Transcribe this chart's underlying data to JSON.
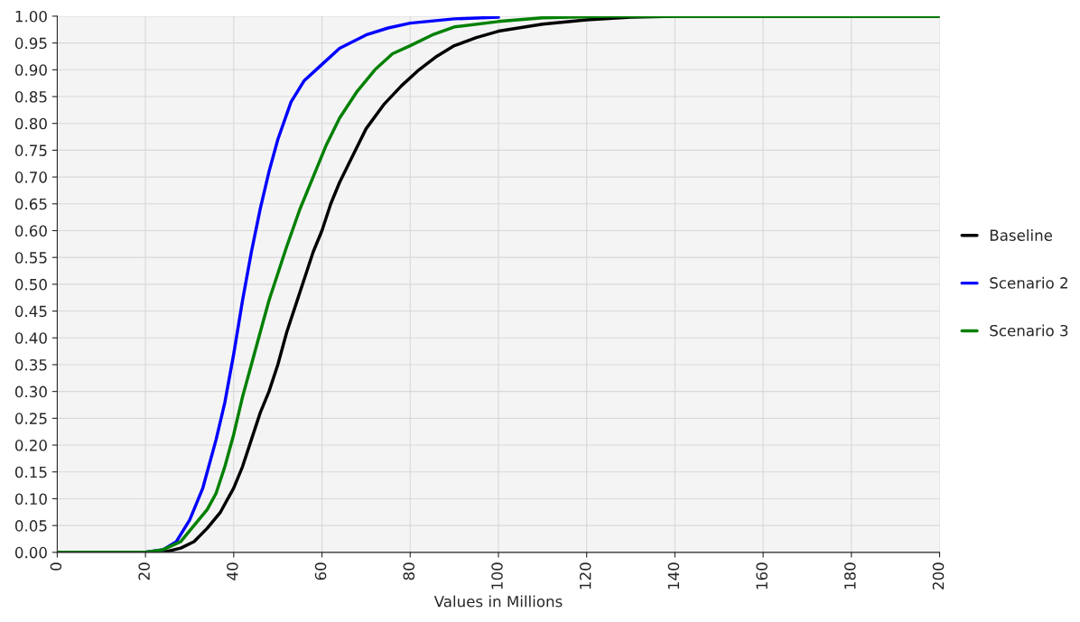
{
  "chart_data": {
    "type": "line",
    "xlabel": "Values in Millions",
    "xlim": [
      0,
      200
    ],
    "xticks": [
      0,
      20,
      40,
      60,
      80,
      100,
      120,
      140,
      160,
      180,
      200
    ],
    "ylim": [
      0,
      1
    ],
    "yticks": [
      {
        "value": 0,
        "label": "0.00"
      },
      {
        "value": 0.05,
        "label": "0.05"
      },
      {
        "value": 0.1,
        "label": "0.10"
      },
      {
        "value": 0.15,
        "label": "0.15"
      },
      {
        "value": 0.2,
        "label": "0.20"
      },
      {
        "value": 0.25,
        "label": "0.25"
      },
      {
        "value": 0.3,
        "label": "0.30"
      },
      {
        "value": 0.35,
        "label": "0.35"
      },
      {
        "value": 0.4,
        "label": "0.40"
      },
      {
        "value": 0.45,
        "label": "0.45"
      },
      {
        "value": 0.5,
        "label": "0.50"
      },
      {
        "value": 0.55,
        "label": "0.55"
      },
      {
        "value": 0.6,
        "label": "0.60"
      },
      {
        "value": 0.65,
        "label": "0.65"
      },
      {
        "value": 0.7,
        "label": "0.70"
      },
      {
        "value": 0.75,
        "label": "0.75"
      },
      {
        "value": 0.8,
        "label": "0.80"
      },
      {
        "value": 0.85,
        "label": "0.85"
      },
      {
        "value": 0.9,
        "label": "0.90"
      },
      {
        "value": 0.95,
        "label": "0.95"
      },
      {
        "value": 1,
        "label": "1.00"
      }
    ],
    "grid": true,
    "legend": "right",
    "line_style": "solid",
    "series": [
      {
        "name": "Baseline",
        "color": "#000000",
        "x": [
          0,
          20,
          25,
          28,
          31,
          34,
          37,
          40,
          42,
          44,
          46,
          48,
          50,
          52,
          54,
          56,
          58,
          60,
          62,
          64,
          67,
          70,
          74,
          78,
          82,
          86,
          90,
          95,
          100,
          110,
          120,
          130,
          140,
          200
        ],
        "values": [
          0,
          0,
          0.002,
          0.008,
          0.02,
          0.045,
          0.075,
          0.12,
          0.16,
          0.21,
          0.26,
          0.3,
          0.35,
          0.41,
          0.46,
          0.51,
          0.56,
          0.6,
          0.65,
          0.69,
          0.74,
          0.79,
          0.835,
          0.87,
          0.9,
          0.925,
          0.945,
          0.96,
          0.972,
          0.985,
          0.993,
          0.998,
          1,
          1
        ]
      },
      {
        "name": "Scenario 2",
        "color": "#0000ff",
        "x": [
          0,
          20,
          24,
          27,
          30,
          33,
          36,
          38,
          40,
          42,
          44,
          46,
          48,
          50,
          53,
          56,
          60,
          64,
          70,
          75,
          80,
          90,
          100
        ],
        "values": [
          0,
          0,
          0.005,
          0.02,
          0.06,
          0.12,
          0.21,
          0.28,
          0.37,
          0.47,
          0.56,
          0.64,
          0.71,
          0.77,
          0.84,
          0.88,
          0.91,
          0.94,
          0.965,
          0.978,
          0.987,
          0.995,
          0.998
        ]
      },
      {
        "name": "Scenario 3",
        "color": "#008000",
        "x": [
          0,
          20,
          24,
          28,
          31,
          34,
          36,
          38,
          40,
          42,
          44,
          46,
          48,
          50,
          52,
          55,
          58,
          61,
          64,
          68,
          72,
          76,
          80,
          85,
          90,
          100,
          110,
          125,
          200
        ],
        "values": [
          0,
          0,
          0.005,
          0.02,
          0.05,
          0.08,
          0.11,
          0.16,
          0.22,
          0.29,
          0.35,
          0.41,
          0.47,
          0.52,
          0.57,
          0.64,
          0.7,
          0.76,
          0.81,
          0.86,
          0.9,
          0.93,
          0.945,
          0.965,
          0.98,
          0.99,
          0.997,
          1,
          1
        ]
      }
    ]
  }
}
